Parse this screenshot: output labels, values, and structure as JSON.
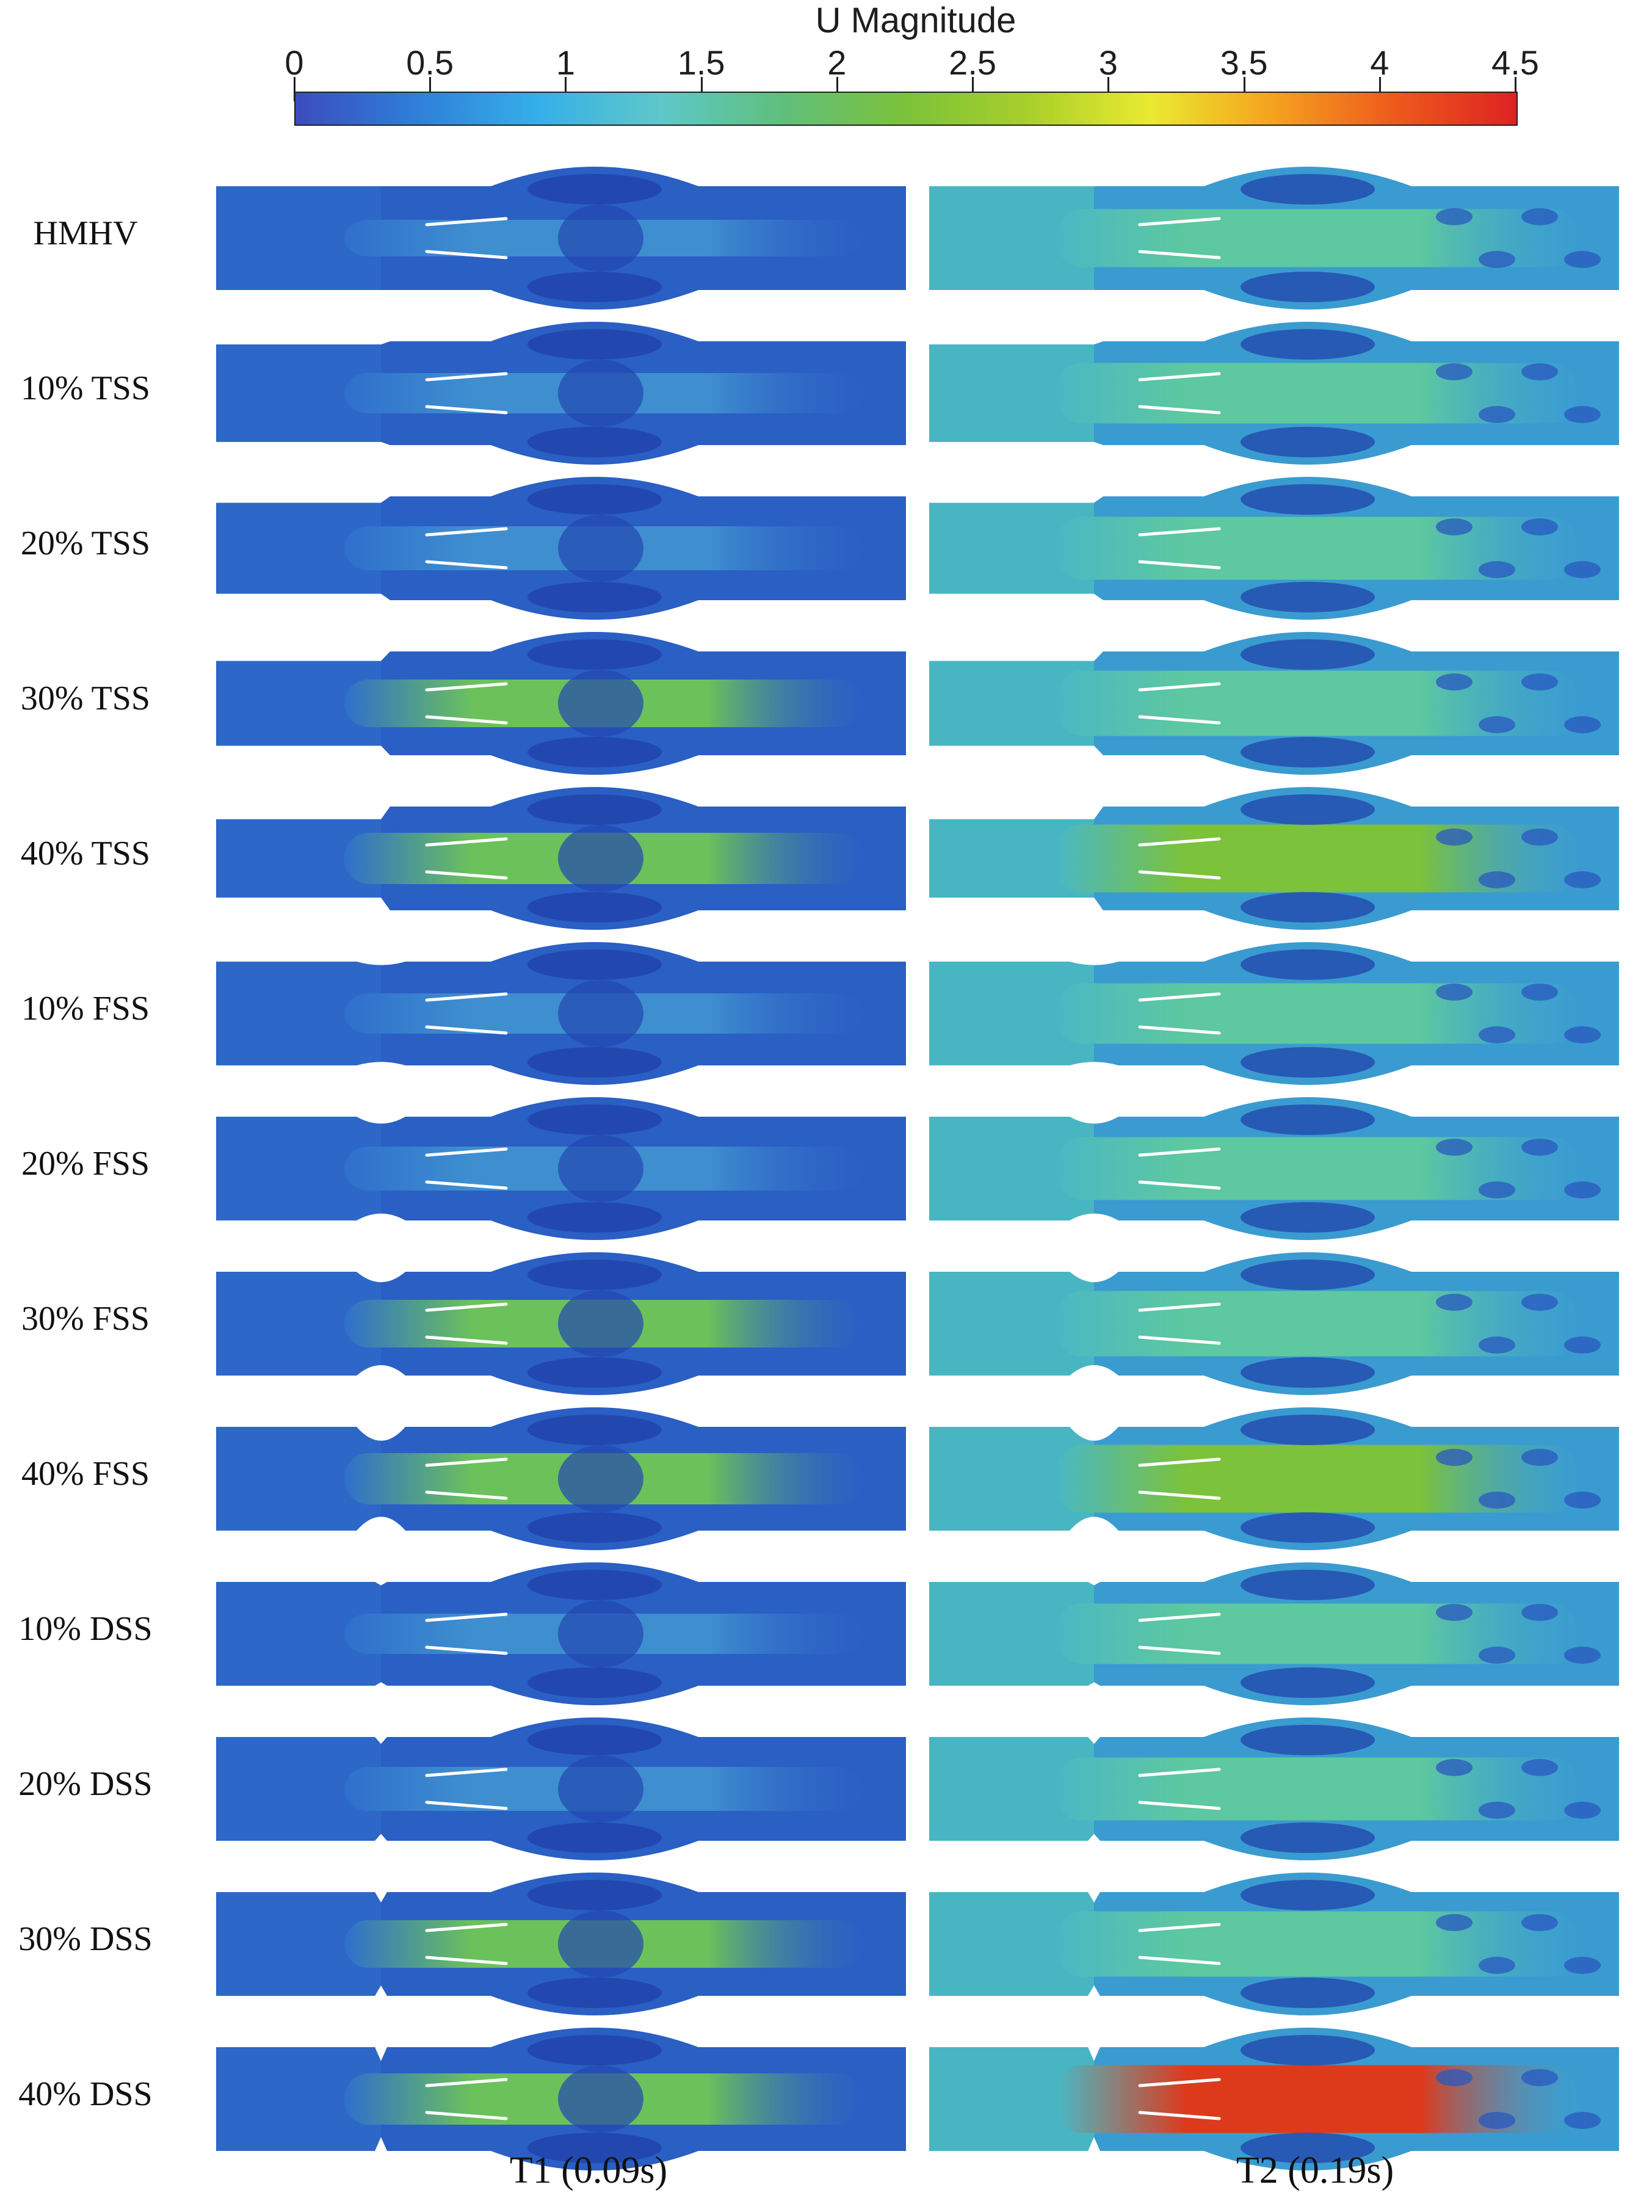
{
  "colorbar": {
    "title": "U Magnitude",
    "ticks": [
      "0",
      "0.5",
      "1",
      "1.5",
      "2",
      "2.5",
      "3",
      "3.5",
      "4",
      "4.5"
    ],
    "stops": [
      "#3b4cc0",
      "#2f7fd9",
      "#35b0e8",
      "#5ec8c9",
      "#5fbf7a",
      "#7cc23a",
      "#a8cf2a",
      "#eaea30",
      "#f5a21e",
      "#ee5a1c",
      "#dd2222"
    ]
  },
  "rows": [
    {
      "label": "HMHV",
      "t1": {
        "stenosis": "none",
        "severity": 0
      },
      "t2": {
        "stenosis": "none",
        "severity": 0
      }
    },
    {
      "label": "10% TSS",
      "t1": {
        "stenosis": "TSS",
        "severity": 10
      },
      "t2": {
        "stenosis": "TSS",
        "severity": 10
      }
    },
    {
      "label": "20% TSS",
      "t1": {
        "stenosis": "TSS",
        "severity": 20
      },
      "t2": {
        "stenosis": "TSS",
        "severity": 20
      }
    },
    {
      "label": "30% TSS",
      "t1": {
        "stenosis": "TSS",
        "severity": 30
      },
      "t2": {
        "stenosis": "TSS",
        "severity": 30
      }
    },
    {
      "label": "40% TSS",
      "t1": {
        "stenosis": "TSS",
        "severity": 40
      },
      "t2": {
        "stenosis": "TSS",
        "severity": 40
      }
    },
    {
      "label": "10% FSS",
      "t1": {
        "stenosis": "FSS",
        "severity": 10
      },
      "t2": {
        "stenosis": "FSS",
        "severity": 10
      }
    },
    {
      "label": "20% FSS",
      "t1": {
        "stenosis": "FSS",
        "severity": 20
      },
      "t2": {
        "stenosis": "FSS",
        "severity": 20
      }
    },
    {
      "label": "30% FSS",
      "t1": {
        "stenosis": "FSS",
        "severity": 30
      },
      "t2": {
        "stenosis": "FSS",
        "severity": 30
      }
    },
    {
      "label": "40% FSS",
      "t1": {
        "stenosis": "FSS",
        "severity": 40
      },
      "t2": {
        "stenosis": "FSS",
        "severity": 40
      }
    },
    {
      "label": "10% DSS",
      "t1": {
        "stenosis": "DSS",
        "severity": 10
      },
      "t2": {
        "stenosis": "DSS",
        "severity": 10
      }
    },
    {
      "label": "20% DSS",
      "t1": {
        "stenosis": "DSS",
        "severity": 20
      },
      "t2": {
        "stenosis": "DSS",
        "severity": 20
      }
    },
    {
      "label": "30% DSS",
      "t1": {
        "stenosis": "DSS",
        "severity": 30
      },
      "t2": {
        "stenosis": "DSS",
        "severity": 30
      }
    },
    {
      "label": "40% DSS",
      "t1": {
        "stenosis": "DSS",
        "severity": 40
      },
      "t2": {
        "stenosis": "DSS",
        "severity": 40
      }
    }
  ],
  "columns": [
    {
      "label": "T1 (0.09s)"
    },
    {
      "label": "T2 (0.19s)"
    }
  ]
}
